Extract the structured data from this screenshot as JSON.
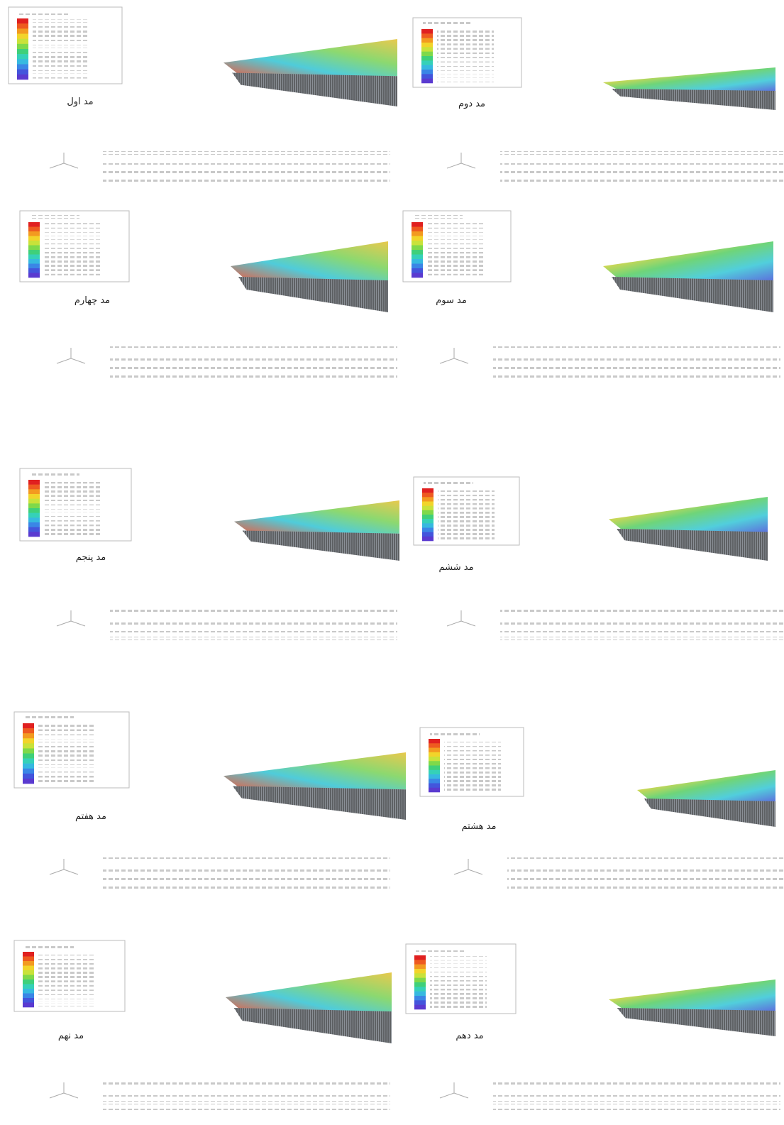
{
  "figures": [
    {
      "caption": "مد اول"
    },
    {
      "caption": "مد دوم"
    },
    {
      "caption": "مد چهارم"
    },
    {
      "caption": "مد سوم"
    },
    {
      "caption": "مد پنجم"
    },
    {
      "caption": "مد ششم"
    },
    {
      "caption": "مد هفتم"
    },
    {
      "caption": "مد هشتم"
    },
    {
      "caption": "مد نهم"
    },
    {
      "caption": "مد دهم"
    }
  ]
}
